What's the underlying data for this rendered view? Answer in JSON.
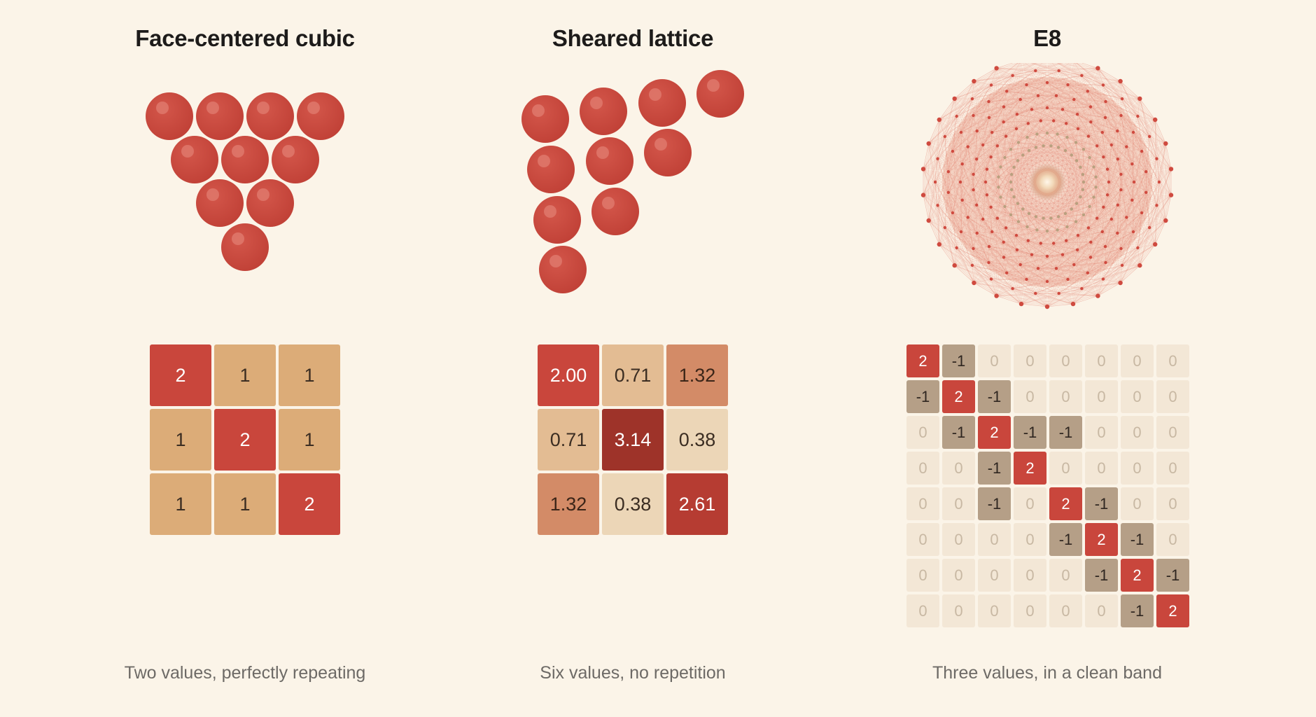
{
  "panels": [
    {
      "title": "Face-centered cubic",
      "caption": "Two values, perfectly repeating",
      "matrix": [
        [
          "2",
          "1",
          "1"
        ],
        [
          "1",
          "2",
          "1"
        ],
        [
          "1",
          "1",
          "2"
        ]
      ]
    },
    {
      "title": "Sheared lattice",
      "caption": "Six values, no repetition",
      "matrix": [
        [
          "2.00",
          "0.71",
          "1.32"
        ],
        [
          "0.71",
          "3.14",
          "0.38"
        ],
        [
          "1.32",
          "0.38",
          "2.61"
        ]
      ]
    },
    {
      "title": "E8",
      "caption": "Three values, in a clean band",
      "matrix": [
        [
          "2",
          "-1",
          "0",
          "0",
          "0",
          "0",
          "0",
          "0"
        ],
        [
          "-1",
          "2",
          "-1",
          "0",
          "0",
          "0",
          "0",
          "0"
        ],
        [
          "0",
          "-1",
          "2",
          "-1",
          "-1",
          "0",
          "0",
          "0"
        ],
        [
          "0",
          "0",
          "-1",
          "2",
          "0",
          "0",
          "0",
          "0"
        ],
        [
          "0",
          "0",
          "-1",
          "0",
          "2",
          "-1",
          "0",
          "0"
        ],
        [
          "0",
          "0",
          "0",
          "0",
          "-1",
          "2",
          "-1",
          "0"
        ],
        [
          "0",
          "0",
          "0",
          "0",
          "0",
          "-1",
          "2",
          "-1"
        ],
        [
          "0",
          "0",
          "0",
          "0",
          "0",
          "0",
          "-1",
          "2"
        ]
      ]
    }
  ],
  "colors": {
    "background": "#fbf4e8",
    "sphere": "#c9463c",
    "sphere_highlight": "#e07a6e",
    "e8_edge": "#e0705f",
    "e8_node": "#cf4a3f",
    "e8_core": "#b9a07f"
  }
}
